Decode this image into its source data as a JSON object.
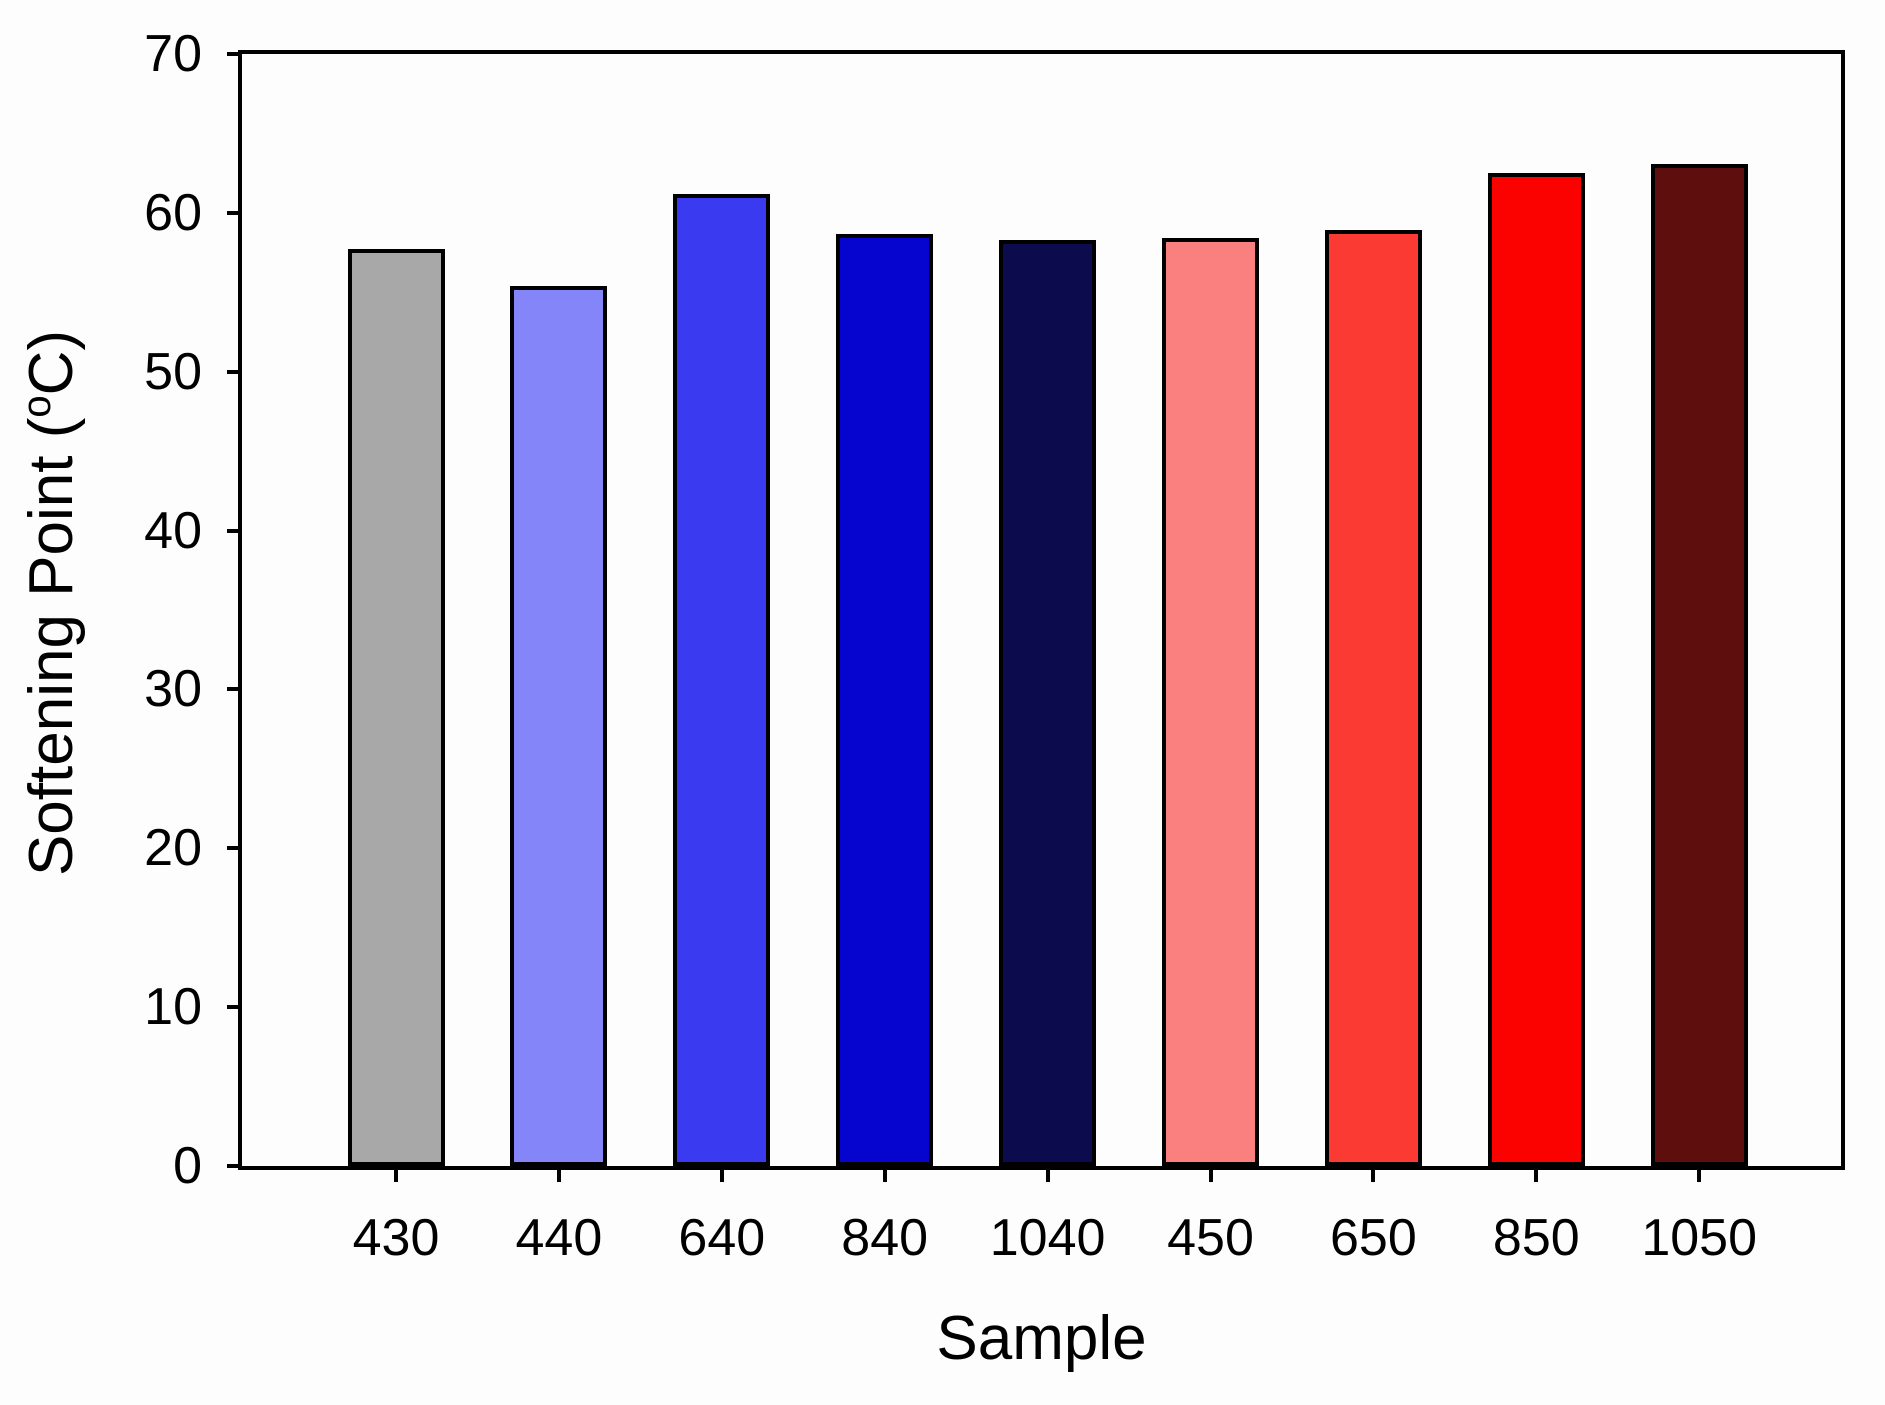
{
  "figure": {
    "background": "#fdfdfd",
    "axis_color": "#000000"
  },
  "chart_data": {
    "type": "bar",
    "title": "",
    "xlabel": "Sample",
    "ylabel": "Softening Point (°C)",
    "ylabel_parts": {
      "prefix": "Softening Point (",
      "superscript": "o",
      "suffix": "C)"
    },
    "categories": [
      "430",
      "440",
      "640",
      "840",
      "1040",
      "450",
      "650",
      "850",
      "1050"
    ],
    "values": [
      57.7,
      55.4,
      61.2,
      58.7,
      58.3,
      58.4,
      58.9,
      62.5,
      63.1
    ],
    "bar_colors": [
      "#a8a8a8",
      "#8585fa",
      "#3a3af0",
      "#0505cf",
      "#0b0b4e",
      "#fa8080",
      "#fb3b33",
      "#fb0200",
      "#5f0e0e"
    ],
    "bar_border_color": "#000000",
    "ylim": [
      0,
      70
    ],
    "yticks": [
      0,
      10,
      20,
      30,
      40,
      50,
      60,
      70
    ],
    "grid": false,
    "legend": null
  }
}
